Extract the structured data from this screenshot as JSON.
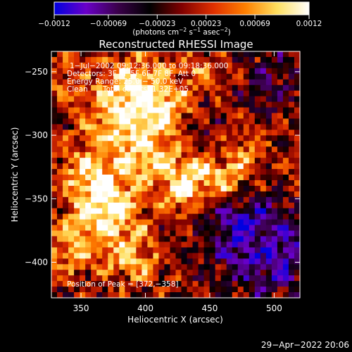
{
  "chart_data": {
    "type": "heatmap",
    "title": "Reconstructed RHESSI Image",
    "xlabel": "Heliocentric X (arcsec)",
    "ylabel": "Heliocentric Y (arcsec)",
    "xlim": [
      327,
      520
    ],
    "ylim": [
      -428,
      -234
    ],
    "x_ticks": [
      350,
      400,
      450,
      500
    ],
    "y_ticks": [
      -250,
      -300,
      -350,
      -400
    ],
    "x_tick_labels": [
      "350",
      "400",
      "450",
      "500"
    ],
    "y_tick_labels": [
      "−250",
      "−300",
      "−350",
      "−400"
    ],
    "colorbar": {
      "min": -0.0012,
      "max": 0.0012,
      "tick_values": [
        -0.0012,
        -0.00069,
        -0.00023,
        0.00023,
        0.00069,
        0.0012
      ],
      "tick_labels": [
        "−0.0012",
        "−0.00069",
        "−0.00023",
        "0.00023",
        "0.00069",
        "0.0012"
      ],
      "units_base": "(photons cm",
      "units_exp1": "−2",
      "units_mid": " s",
      "units_exp2": "−1",
      "units_end": " asec",
      "units_exp3": "−2",
      "units_close": ")",
      "colors": [
        "#0000e0",
        "#6a00c8",
        "#3a004a",
        "#000000",
        "#800000",
        "#e03000",
        "#ff8000",
        "#ffe060",
        "#ffffff"
      ]
    },
    "peak": {
      "x": 372,
      "y": -358
    },
    "blobs": [
      {
        "x": 395,
        "y": -262,
        "amp": 1.0,
        "s": 18
      },
      {
        "x": 375,
        "y": -285,
        "amp": 0.9,
        "s": 16
      },
      {
        "x": 400,
        "y": -315,
        "amp": 1.0,
        "s": 18
      },
      {
        "x": 420,
        "y": -280,
        "amp": 0.8,
        "s": 14
      },
      {
        "x": 372,
        "y": -358,
        "amp": 1.2,
        "s": 16
      },
      {
        "x": 355,
        "y": -330,
        "amp": 0.9,
        "s": 16
      },
      {
        "x": 345,
        "y": -385,
        "amp": 0.9,
        "s": 16
      },
      {
        "x": 390,
        "y": -395,
        "amp": 0.8,
        "s": 15
      },
      {
        "x": 440,
        "y": -330,
        "amp": 0.9,
        "s": 14
      },
      {
        "x": 465,
        "y": -335,
        "amp": 0.8,
        "s": 12
      },
      {
        "x": 425,
        "y": -350,
        "amp": 0.6,
        "s": 14
      },
      {
        "x": 480,
        "y": -310,
        "amp": 0.5,
        "s": 12
      },
      {
        "x": 445,
        "y": -250,
        "amp": 0.5,
        "s": 12
      },
      {
        "x": 335,
        "y": -255,
        "amp": 0.5,
        "s": 12
      },
      {
        "x": 490,
        "y": -390,
        "amp": 0.3,
        "s": 12
      },
      {
        "x": 500,
        "y": -395,
        "amp": -1.0,
        "s": 22
      },
      {
        "x": 470,
        "y": -370,
        "amp": -0.8,
        "s": 20
      },
      {
        "x": 500,
        "y": -260,
        "amp": -0.4,
        "s": 20
      },
      {
        "x": 440,
        "y": -300,
        "amp": -0.4,
        "s": 15
      }
    ]
  },
  "annotations": {
    "time_range": "1−Jul−2002 09:12:36.000 to 09:18:36.000",
    "detectors": "Detectors: 3F 4F 5F 6F 7F 8F, Att 0",
    "energy_range": "Energy Range: 25.0 − 50.0 keV",
    "method": "Clean",
    "total_counts": "Total counts: 1.32E+05",
    "peak_position": "Position of Peak = [372,−358]"
  },
  "footer": {
    "timestamp": "29−Apr−2022 20:06"
  }
}
